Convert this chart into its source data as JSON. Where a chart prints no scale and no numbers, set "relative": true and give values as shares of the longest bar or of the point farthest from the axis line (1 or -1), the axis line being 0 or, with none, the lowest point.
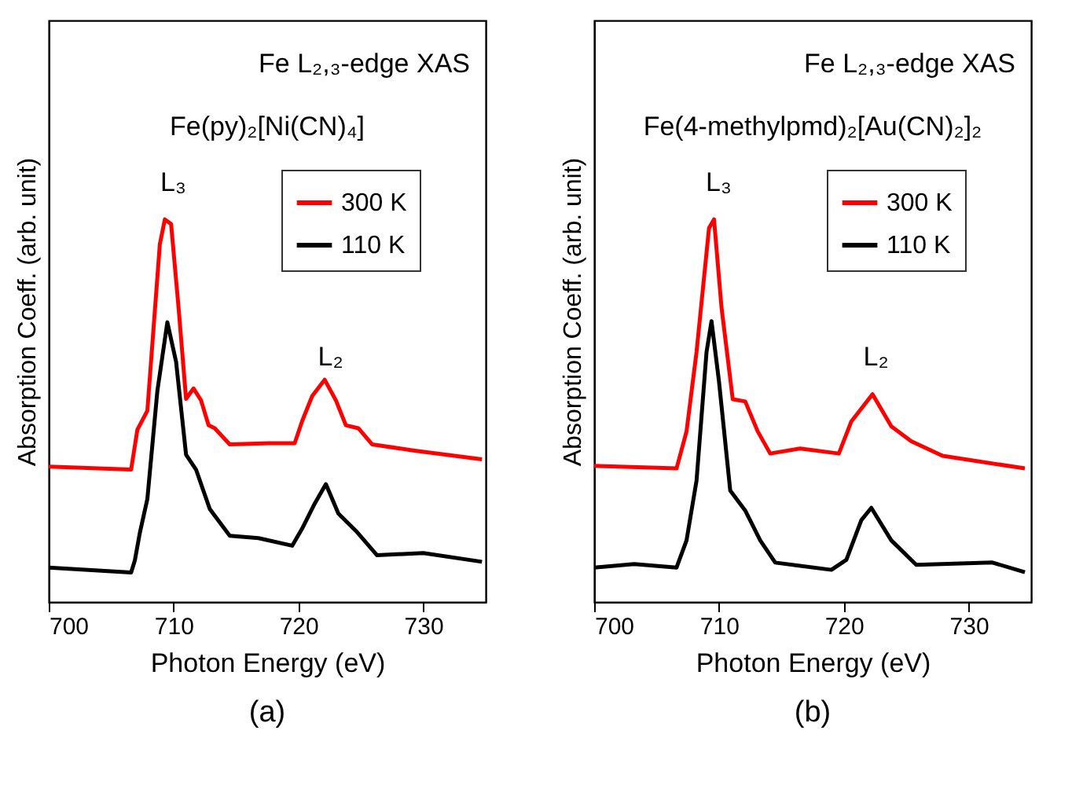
{
  "chart_data": [
    {
      "type": "line",
      "title": "(a)",
      "xlabel": "Photon Energy (eV)",
      "ylabel": "Absorption Coeff. (arb. unit)",
      "relative": true,
      "xlim": [
        700,
        735
      ],
      "xticks": [
        700,
        710,
        720,
        730
      ],
      "legend": "top right",
      "annotations": [
        "Fe L₂,₃-edge XAS",
        "Fe(py)₂[Ni(CN)₄]",
        "L₃",
        "L₂"
      ],
      "series": [
        {
          "name": "300 K",
          "color": "#ff0000",
          "x": [
            700,
            706.6,
            707.1,
            707.9,
            708.9,
            709.3,
            709.8,
            710.4,
            711.0,
            711.6,
            712.2,
            712.8,
            713.3,
            714.5,
            717.6,
            719.7,
            720.3,
            721.1,
            722.1,
            723.0,
            723.8,
            724.8,
            725.9,
            729.2,
            734.7
          ],
          "values": [
            0.354,
            0.346,
            0.45,
            0.5,
            0.935,
            1,
            0.988,
            0.769,
            0.531,
            0.558,
            0.527,
            0.462,
            0.454,
            0.412,
            0.415,
            0.415,
            0.473,
            0.538,
            0.581,
            0.527,
            0.462,
            0.454,
            0.412,
            0.396,
            0.373
          ]
        },
        {
          "name": "110 K",
          "color": "#000000",
          "x": [
            700,
            706.6,
            706.9,
            707.3,
            707.9,
            708.7,
            709.5,
            710.2,
            711.0,
            711.8,
            712.9,
            714.5,
            716.8,
            719.5,
            720.3,
            721.3,
            722.2,
            723.2,
            724.6,
            726.3,
            730.0,
            734.7
          ],
          "values": [
            0.09,
            0.077,
            0.109,
            0.181,
            0.269,
            0.551,
            0.731,
            0.628,
            0.385,
            0.346,
            0.243,
            0.173,
            0.167,
            0.147,
            0.192,
            0.257,
            0.308,
            0.231,
            0.186,
            0.122,
            0.128,
            0.105
          ]
        }
      ]
    },
    {
      "type": "line",
      "title": "(b)",
      "xlabel": "Photon Energy (eV)",
      "ylabel": "Absorption Coeff. (arb. unit)",
      "relative": true,
      "xlim": [
        700,
        735
      ],
      "xticks": [
        700,
        710,
        720,
        730
      ],
      "legend": "top right",
      "annotations": [
        "Fe L₂,₃-edge XAS",
        "Fe(4-methylpmd)₂[Au(CN)₂]₂",
        "L₃",
        "L₂"
      ],
      "series": [
        {
          "name": "300 K",
          "color": "#ff0000",
          "x": [
            700,
            706.6,
            707.4,
            708.2,
            709.2,
            709.6,
            710.2,
            711.1,
            712.1,
            713.1,
            714.1,
            716.5,
            719.6,
            720.6,
            722.3,
            723.8,
            725.4,
            727.9,
            734.5
          ],
          "values": [
            0.356,
            0.349,
            0.446,
            0.653,
            0.977,
            1,
            0.77,
            0.53,
            0.524,
            0.446,
            0.388,
            0.401,
            0.388,
            0.472,
            0.543,
            0.459,
            0.42,
            0.382,
            0.349
          ]
        },
        {
          "name": "110 K",
          "color": "#000000",
          "x": [
            700,
            703.2,
            706.6,
            707.4,
            708.2,
            709.0,
            709.4,
            710.0,
            710.9,
            712.1,
            713.3,
            714.5,
            719.0,
            720.2,
            721.4,
            722.2,
            723.8,
            725.8,
            731.9,
            734.5
          ],
          "values": [
            0.09,
            0.099,
            0.09,
            0.161,
            0.317,
            0.653,
            0.734,
            0.576,
            0.291,
            0.239,
            0.161,
            0.103,
            0.084,
            0.11,
            0.214,
            0.246,
            0.161,
            0.097,
            0.103,
            0.078
          ]
        }
      ]
    }
  ]
}
